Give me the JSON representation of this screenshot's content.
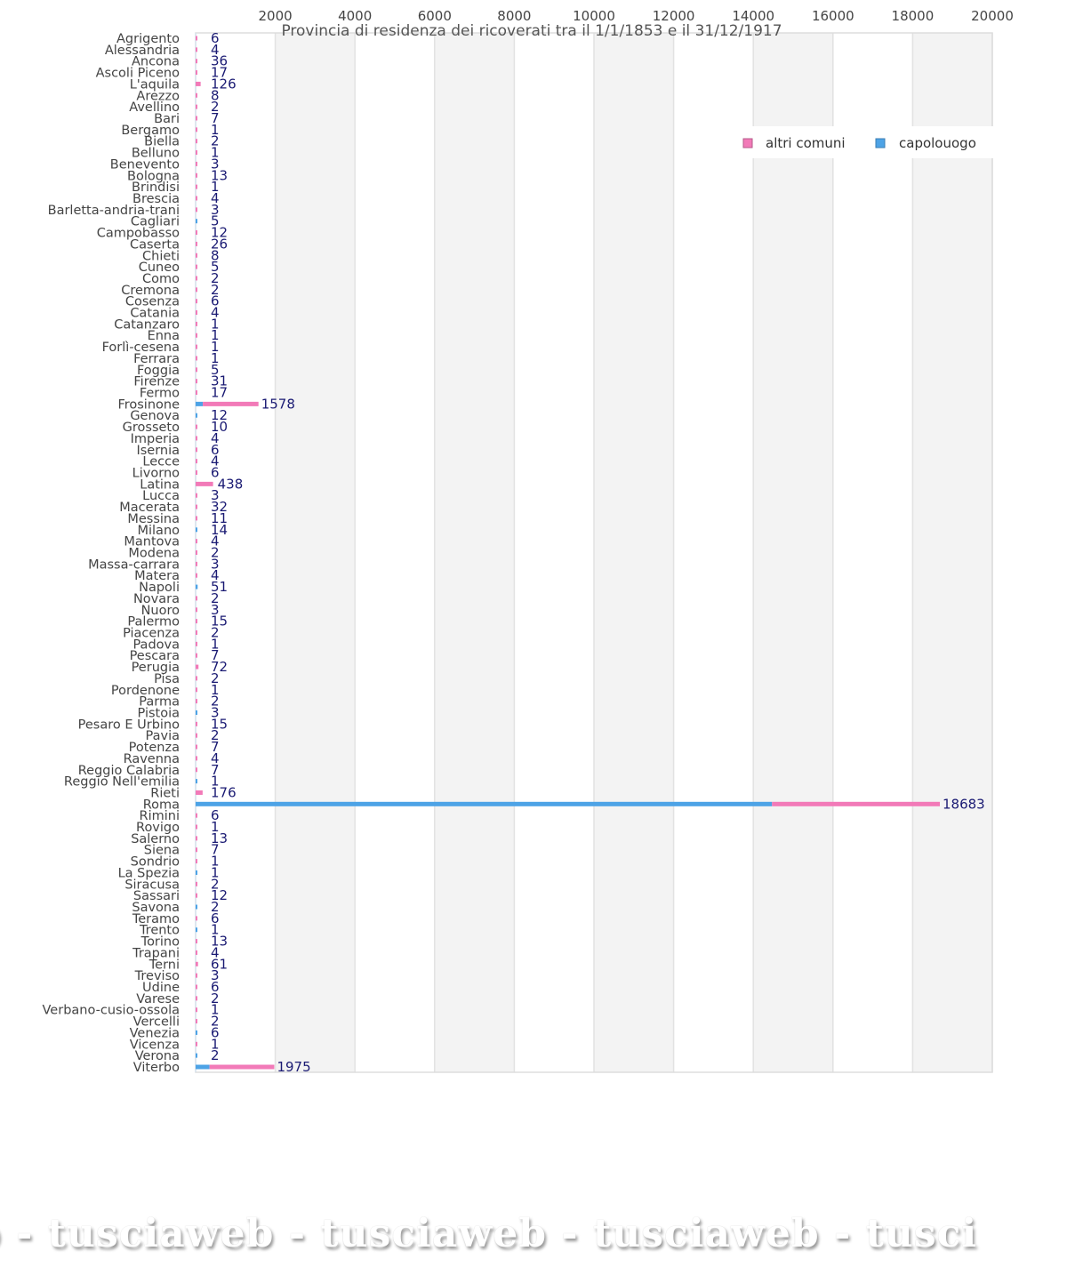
{
  "chart_data": {
    "type": "bar",
    "orientation": "horizontal",
    "stacked": true,
    "title": "Provincia di residenza dei ricoverati tra il 1/1/1853 e il 31/12/1917",
    "xlabel": "",
    "ylabel": "",
    "xlim": [
      0,
      20000
    ],
    "xticks": [
      2000,
      4000,
      6000,
      8000,
      10000,
      12000,
      14000,
      16000,
      18000,
      20000
    ],
    "grid": "alternating vertical bands",
    "legend_position": "top-right",
    "series": [
      {
        "name": "capolouogo",
        "color": "#4da3e6"
      },
      {
        "name": "altri comuni",
        "color": "#f27ab8"
      }
    ],
    "categories": [
      {
        "name": "Agrigento",
        "total": 6,
        "capoluogo": 0
      },
      {
        "name": "Alessandria",
        "total": 4,
        "capoluogo": 0
      },
      {
        "name": "Ancona",
        "total": 36,
        "capoluogo": 0
      },
      {
        "name": "Ascoli Piceno",
        "total": 17,
        "capoluogo": 0
      },
      {
        "name": "L'aquila",
        "total": 126,
        "capoluogo": 0
      },
      {
        "name": "Arezzo",
        "total": 8,
        "capoluogo": 0
      },
      {
        "name": "Avellino",
        "total": 2,
        "capoluogo": 0
      },
      {
        "name": "Bari",
        "total": 7,
        "capoluogo": 0
      },
      {
        "name": "Bergamo",
        "total": 1,
        "capoluogo": 0
      },
      {
        "name": "Biella",
        "total": 2,
        "capoluogo": 0
      },
      {
        "name": "Belluno",
        "total": 1,
        "capoluogo": 0
      },
      {
        "name": "Benevento",
        "total": 3,
        "capoluogo": 0
      },
      {
        "name": "Bologna",
        "total": 13,
        "capoluogo": 0
      },
      {
        "name": "Brindisi",
        "total": 1,
        "capoluogo": 0
      },
      {
        "name": "Brescia",
        "total": 4,
        "capoluogo": 0
      },
      {
        "name": "Barletta-andria-trani",
        "total": 3,
        "capoluogo": 0
      },
      {
        "name": "Cagliari",
        "total": 5,
        "capoluogo": 5
      },
      {
        "name": "Campobasso",
        "total": 12,
        "capoluogo": 0
      },
      {
        "name": "Caserta",
        "total": 26,
        "capoluogo": 0
      },
      {
        "name": "Chieti",
        "total": 8,
        "capoluogo": 0
      },
      {
        "name": "Cuneo",
        "total": 5,
        "capoluogo": 0
      },
      {
        "name": "Como",
        "total": 2,
        "capoluogo": 0
      },
      {
        "name": "Cremona",
        "total": 2,
        "capoluogo": 0
      },
      {
        "name": "Cosenza",
        "total": 6,
        "capoluogo": 0
      },
      {
        "name": "Catania",
        "total": 4,
        "capoluogo": 0
      },
      {
        "name": "Catanzaro",
        "total": 1,
        "capoluogo": 0
      },
      {
        "name": "Enna",
        "total": 1,
        "capoluogo": 0
      },
      {
        "name": "Forlì-cesena",
        "total": 1,
        "capoluogo": 0
      },
      {
        "name": "Ferrara",
        "total": 1,
        "capoluogo": 0
      },
      {
        "name": "Foggia",
        "total": 5,
        "capoluogo": 0
      },
      {
        "name": "Firenze",
        "total": 31,
        "capoluogo": 0
      },
      {
        "name": "Fermo",
        "total": 17,
        "capoluogo": 0
      },
      {
        "name": "Frosinone",
        "total": 1578,
        "capoluogo": 180
      },
      {
        "name": "Genova",
        "total": 12,
        "capoluogo": 12
      },
      {
        "name": "Grosseto",
        "total": 10,
        "capoluogo": 0
      },
      {
        "name": "Imperia",
        "total": 4,
        "capoluogo": 0
      },
      {
        "name": "Isernia",
        "total": 6,
        "capoluogo": 0
      },
      {
        "name": "Lecce",
        "total": 4,
        "capoluogo": 0
      },
      {
        "name": "Livorno",
        "total": 6,
        "capoluogo": 0
      },
      {
        "name": "Latina",
        "total": 438,
        "capoluogo": 0
      },
      {
        "name": "Lucca",
        "total": 3,
        "capoluogo": 0
      },
      {
        "name": "Macerata",
        "total": 32,
        "capoluogo": 0
      },
      {
        "name": "Messina",
        "total": 11,
        "capoluogo": 0
      },
      {
        "name": "Milano",
        "total": 14,
        "capoluogo": 14
      },
      {
        "name": "Mantova",
        "total": 4,
        "capoluogo": 0
      },
      {
        "name": "Modena",
        "total": 2,
        "capoluogo": 0
      },
      {
        "name": "Massa-carrara",
        "total": 3,
        "capoluogo": 0
      },
      {
        "name": "Matera",
        "total": 4,
        "capoluogo": 0
      },
      {
        "name": "Napoli",
        "total": 51,
        "capoluogo": 51
      },
      {
        "name": "Novara",
        "total": 2,
        "capoluogo": 0
      },
      {
        "name": "Nuoro",
        "total": 3,
        "capoluogo": 0
      },
      {
        "name": "Palermo",
        "total": 15,
        "capoluogo": 0
      },
      {
        "name": "Piacenza",
        "total": 2,
        "capoluogo": 0
      },
      {
        "name": "Padova",
        "total": 1,
        "capoluogo": 0
      },
      {
        "name": "Pescara",
        "total": 7,
        "capoluogo": 0
      },
      {
        "name": "Perugia",
        "total": 72,
        "capoluogo": 0
      },
      {
        "name": "Pisa",
        "total": 2,
        "capoluogo": 0
      },
      {
        "name": "Pordenone",
        "total": 1,
        "capoluogo": 0
      },
      {
        "name": "Parma",
        "total": 2,
        "capoluogo": 0
      },
      {
        "name": "Pistoia",
        "total": 3,
        "capoluogo": 3
      },
      {
        "name": "Pesaro E Urbino",
        "total": 15,
        "capoluogo": 0
      },
      {
        "name": "Pavia",
        "total": 2,
        "capoluogo": 0
      },
      {
        "name": "Potenza",
        "total": 7,
        "capoluogo": 0
      },
      {
        "name": "Ravenna",
        "total": 4,
        "capoluogo": 0
      },
      {
        "name": "Reggio Calabria",
        "total": 7,
        "capoluogo": 0
      },
      {
        "name": "Reggio Nell'emilia",
        "total": 1,
        "capoluogo": 1
      },
      {
        "name": "Rieti",
        "total": 176,
        "capoluogo": 0
      },
      {
        "name": "Roma",
        "total": 18683,
        "capoluogo": 14470
      },
      {
        "name": "Rimini",
        "total": 6,
        "capoluogo": 0
      },
      {
        "name": "Rovigo",
        "total": 1,
        "capoluogo": 0
      },
      {
        "name": "Salerno",
        "total": 13,
        "capoluogo": 0
      },
      {
        "name": "Siena",
        "total": 7,
        "capoluogo": 0
      },
      {
        "name": "Sondrio",
        "total": 1,
        "capoluogo": 0
      },
      {
        "name": "La Spezia",
        "total": 1,
        "capoluogo": 1
      },
      {
        "name": "Siracusa",
        "total": 2,
        "capoluogo": 0
      },
      {
        "name": "Sassari",
        "total": 12,
        "capoluogo": 0
      },
      {
        "name": "Savona",
        "total": 2,
        "capoluogo": 2
      },
      {
        "name": "Teramo",
        "total": 6,
        "capoluogo": 0
      },
      {
        "name": "Trento",
        "total": 1,
        "capoluogo": 1
      },
      {
        "name": "Torino",
        "total": 13,
        "capoluogo": 0
      },
      {
        "name": "Trapani",
        "total": 4,
        "capoluogo": 0
      },
      {
        "name": "Terni",
        "total": 61,
        "capoluogo": 0
      },
      {
        "name": "Treviso",
        "total": 3,
        "capoluogo": 0
      },
      {
        "name": "Udine",
        "total": 6,
        "capoluogo": 0
      },
      {
        "name": "Varese",
        "total": 2,
        "capoluogo": 0
      },
      {
        "name": "Verbano-cusio-ossola",
        "total": 1,
        "capoluogo": 0
      },
      {
        "name": "Vercelli",
        "total": 2,
        "capoluogo": 0
      },
      {
        "name": "Venezia",
        "total": 6,
        "capoluogo": 6
      },
      {
        "name": "Vicenza",
        "total": 1,
        "capoluogo": 0
      },
      {
        "name": "Verona",
        "total": 2,
        "capoluogo": 2
      },
      {
        "name": "Viterbo",
        "total": 1975,
        "capoluogo": 350
      }
    ]
  },
  "legend": {
    "items": [
      {
        "label": "altri comuni",
        "color": "#f27ab8"
      },
      {
        "label": "capolouogo",
        "color": "#4da3e6"
      }
    ]
  },
  "watermark": {
    "text": "b - tusciaweb - tusciaweb - tusciaweb - tusci"
  }
}
